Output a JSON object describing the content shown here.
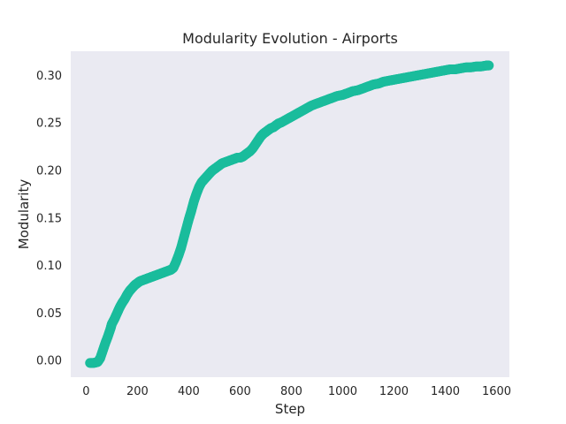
{
  "chart_data": {
    "type": "scatter",
    "title": "Modularity Evolution - Airports",
    "xlabel": "Step",
    "ylabel": "Modularity",
    "xlim": [
      -60,
      1650
    ],
    "ylim": [
      -0.018,
      0.325
    ],
    "xticks": [
      0,
      200,
      400,
      600,
      800,
      1000,
      1200,
      1400,
      1600
    ],
    "yticks": [
      0.0,
      0.05,
      0.1,
      0.15,
      0.2,
      0.25,
      0.3
    ],
    "ytick_labels": [
      "0.00",
      "0.05",
      "0.10",
      "0.15",
      "0.20",
      "0.25",
      "0.30"
    ],
    "grid": false,
    "background_color": "#eaeaf2",
    "series": [
      {
        "color": "#1abc9c",
        "marker": "circle",
        "x": [
          15,
          30,
          45,
          55,
          65,
          75,
          85,
          95,
          100,
          110,
          120,
          130,
          140,
          150,
          160,
          170,
          180,
          190,
          200,
          210,
          220,
          230,
          240,
          250,
          260,
          270,
          280,
          290,
          300,
          310,
          320,
          330,
          340,
          350,
          360,
          370,
          380,
          390,
          400,
          410,
          420,
          430,
          440,
          450,
          460,
          470,
          480,
          490,
          500,
          510,
          520,
          530,
          540,
          550,
          560,
          570,
          580,
          590,
          600,
          610,
          620,
          630,
          640,
          650,
          660,
          670,
          680,
          690,
          700,
          710,
          720,
          730,
          740,
          750,
          760,
          780,
          800,
          820,
          840,
          860,
          880,
          900,
          920,
          940,
          960,
          980,
          1000,
          1020,
          1040,
          1060,
          1080,
          1100,
          1120,
          1140,
          1160,
          1180,
          1200,
          1220,
          1240,
          1260,
          1280,
          1300,
          1320,
          1340,
          1360,
          1380,
          1400,
          1420,
          1440,
          1460,
          1480,
          1500,
          1520,
          1540,
          1560,
          1570
        ],
        "y": [
          -0.003,
          -0.003,
          -0.002,
          0.002,
          0.01,
          0.018,
          0.025,
          0.033,
          0.038,
          0.043,
          0.049,
          0.055,
          0.06,
          0.064,
          0.069,
          0.073,
          0.076,
          0.079,
          0.081,
          0.083,
          0.084,
          0.085,
          0.086,
          0.087,
          0.088,
          0.089,
          0.09,
          0.091,
          0.092,
          0.093,
          0.094,
          0.095,
          0.097,
          0.103,
          0.11,
          0.118,
          0.128,
          0.138,
          0.148,
          0.157,
          0.167,
          0.175,
          0.182,
          0.187,
          0.19,
          0.193,
          0.196,
          0.199,
          0.201,
          0.203,
          0.205,
          0.207,
          0.208,
          0.209,
          0.21,
          0.211,
          0.212,
          0.213,
          0.213,
          0.214,
          0.216,
          0.218,
          0.22,
          0.223,
          0.227,
          0.231,
          0.235,
          0.238,
          0.24,
          0.242,
          0.244,
          0.245,
          0.247,
          0.249,
          0.25,
          0.253,
          0.256,
          0.259,
          0.262,
          0.265,
          0.268,
          0.27,
          0.272,
          0.274,
          0.276,
          0.278,
          0.279,
          0.281,
          0.283,
          0.284,
          0.286,
          0.288,
          0.29,
          0.291,
          0.293,
          0.294,
          0.295,
          0.296,
          0.297,
          0.298,
          0.299,
          0.3,
          0.301,
          0.302,
          0.303,
          0.304,
          0.305,
          0.306,
          0.306,
          0.307,
          0.308,
          0.308,
          0.309,
          0.309,
          0.31,
          0.31
        ]
      }
    ]
  }
}
